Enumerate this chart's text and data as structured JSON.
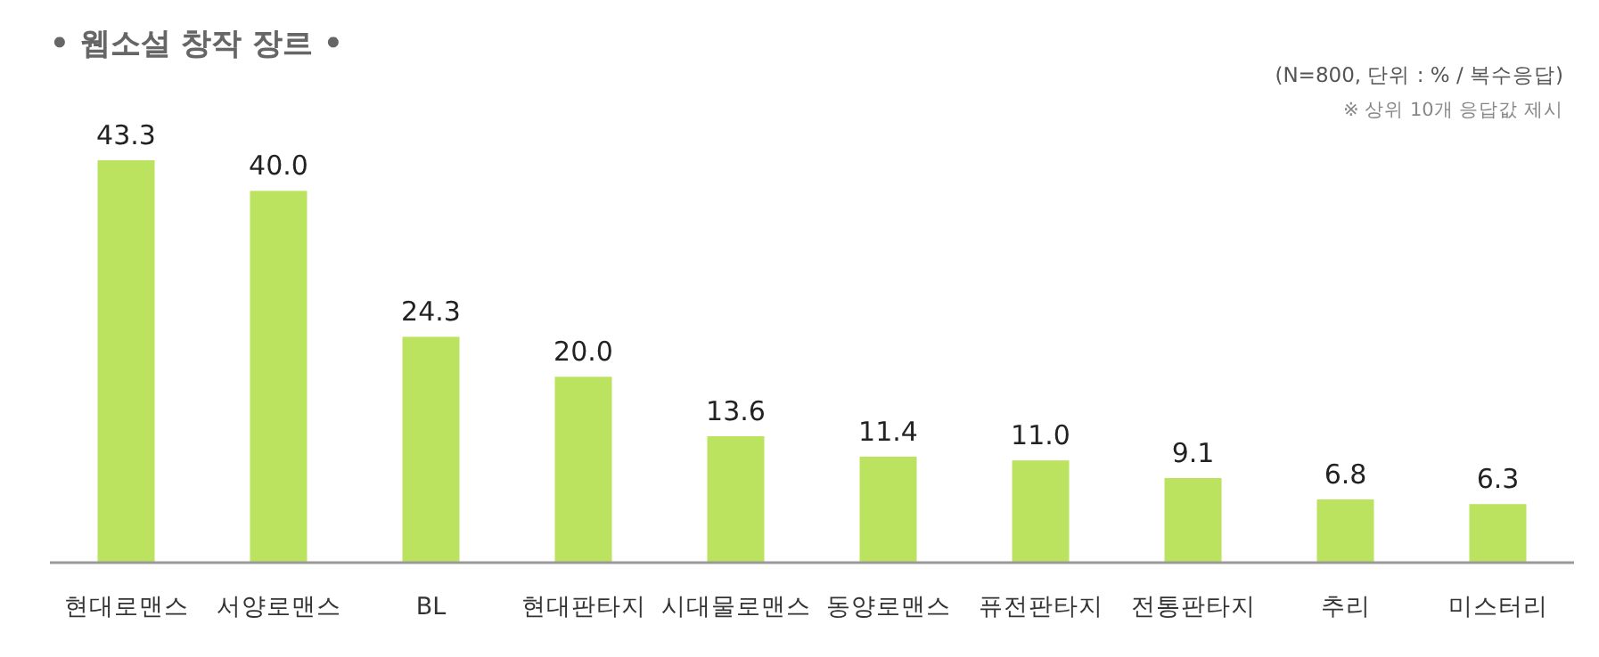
{
  "chart_data": {
    "type": "bar",
    "title": "• 웹소설 창작 장르 •",
    "annotations": [
      "(N=800, 단위 : % / 복수응답)",
      "※ 상위 10개 응답값 제시"
    ],
    "categories": [
      "현대로맨스",
      "서양로맨스",
      "BL",
      "현대판타지",
      "시대물로맨스",
      "동양로맨스",
      "퓨전판타지",
      "전통판타지",
      "추리",
      "미스터리"
    ],
    "values": [
      43.3,
      40.0,
      24.3,
      20.0,
      13.6,
      11.4,
      11.0,
      9.1,
      6.8,
      6.3
    ],
    "value_labels": [
      "43.3",
      "40.0",
      "24.3",
      "20.0",
      "13.6",
      "11.4",
      "11.0",
      "9.1",
      "6.8",
      "6.3"
    ],
    "color": "#bce35f"
  }
}
